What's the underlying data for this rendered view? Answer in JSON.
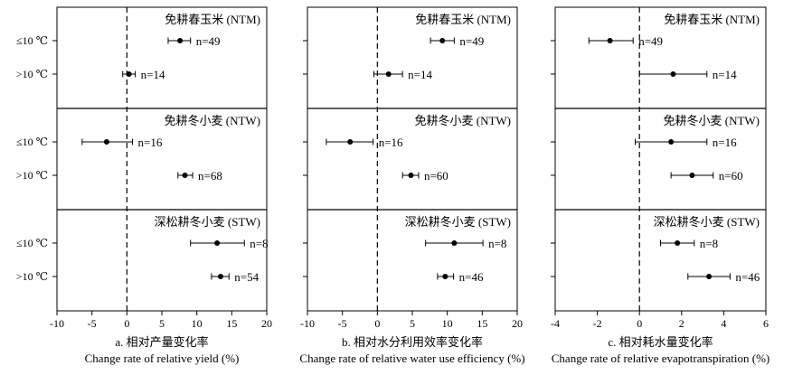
{
  "chart_data": [
    {
      "type": "forest",
      "panel_caption_en": "Change rate of relative yield  (%)",
      "panel_caption_zh": "a. 相对产量变化率",
      "xlim": [
        -10,
        20
      ],
      "xticks": [
        -10,
        -5,
        0,
        5,
        10,
        15,
        20
      ],
      "reference_line_x": 0,
      "groups": [
        {
          "title": "免耕春玉米 (NTM)",
          "rows": [
            {
              "label": "≤10 ℃",
              "mean": 7.6,
              "lower": 5.9,
              "upper": 9.1,
              "n_label": "n=49"
            },
            {
              "label": ">10 ℃",
              "mean": 0.3,
              "lower": -0.6,
              "upper": 1.2,
              "n_label": "n=14"
            }
          ]
        },
        {
          "title": "免耕冬小麦 (NTW)",
          "rows": [
            {
              "label": "≤10 ℃",
              "mean": -2.9,
              "lower": -6.4,
              "upper": 0.8,
              "n_label": "n=16"
            },
            {
              "label": ">10 ℃",
              "mean": 8.3,
              "lower": 7.3,
              "upper": 9.4,
              "n_label": "n=68"
            }
          ]
        },
        {
          "title": "深松耕冬小麦 (STW)",
          "rows": [
            {
              "label": "≤10 ℃",
              "mean": 12.9,
              "lower": 9.1,
              "upper": 16.8,
              "n_label": "n=8"
            },
            {
              "label": ">10 ℃",
              "mean": 13.4,
              "lower": 12.1,
              "upper": 14.6,
              "n_label": "n=54"
            }
          ]
        }
      ]
    },
    {
      "type": "forest",
      "panel_caption_en": "Change rate of relative water use efficiency (%)",
      "panel_caption_zh": "b. 相对水分利用效率变化率",
      "xlim": [
        -10,
        20
      ],
      "xticks": [
        -10,
        -5,
        0,
        5,
        10,
        15,
        20
      ],
      "reference_line_x": 0,
      "groups": [
        {
          "title": "免耕春玉米 (NTM)",
          "rows": [
            {
              "label": "≤10 ℃",
              "mean": 9.3,
              "lower": 7.6,
              "upper": 11.0,
              "n_label": "n=49"
            },
            {
              "label": ">10 ℃",
              "mean": 1.6,
              "lower": -0.5,
              "upper": 3.6,
              "n_label": "n=14"
            }
          ]
        },
        {
          "title": "免耕冬小麦 (NTW)",
          "rows": [
            {
              "label": "≤10 ℃",
              "mean": -3.9,
              "lower": -7.3,
              "upper": -0.6,
              "n_label": "n=16"
            },
            {
              "label": ">10 ℃",
              "mean": 4.8,
              "lower": 3.6,
              "upper": 5.9,
              "n_label": "n=60"
            }
          ]
        },
        {
          "title": "深松耕冬小麦 (STW)",
          "rows": [
            {
              "label": "≤10 ℃",
              "mean": 11.0,
              "lower": 6.9,
              "upper": 15.1,
              "n_label": "n=8"
            },
            {
              "label": ">10 ℃",
              "mean": 9.7,
              "lower": 8.6,
              "upper": 10.9,
              "n_label": "n=46"
            }
          ]
        }
      ]
    },
    {
      "type": "forest",
      "panel_caption_en": "Change rate of relative evapotranspiration (%)",
      "panel_caption_zh": "c. 相对耗水量变化率",
      "xlim": [
        -4,
        6
      ],
      "xticks": [
        -4,
        -2,
        0,
        2,
        4,
        6
      ],
      "reference_line_x": 0,
      "groups": [
        {
          "title": "免耕春玉米 (NTM)",
          "rows": [
            {
              "label": "≤10 ℃",
              "mean": -1.4,
              "lower": -2.4,
              "upper": -0.3,
              "n_label": "n=49"
            },
            {
              "label": ">10 ℃",
              "mean": 1.6,
              "lower": 0.0,
              "upper": 3.2,
              "n_label": "n=14"
            }
          ]
        },
        {
          "title": "免耕冬小麦 (NTW)",
          "rows": [
            {
              "label": "≤10 ℃",
              "mean": 1.5,
              "lower": -0.2,
              "upper": 3.2,
              "n_label": "n=16"
            },
            {
              "label": ">10 ℃",
              "mean": 2.5,
              "lower": 1.5,
              "upper": 3.5,
              "n_label": "n=60"
            }
          ]
        },
        {
          "title": "深松耕冬小麦 (STW)",
          "rows": [
            {
              "label": "≤10 ℃",
              "mean": 1.8,
              "lower": 1.0,
              "upper": 2.6,
              "n_label": "n=8"
            },
            {
              "label": ">10 ℃",
              "mean": 3.3,
              "lower": 2.3,
              "upper": 4.3,
              "n_label": "n=46"
            }
          ]
        }
      ]
    }
  ]
}
